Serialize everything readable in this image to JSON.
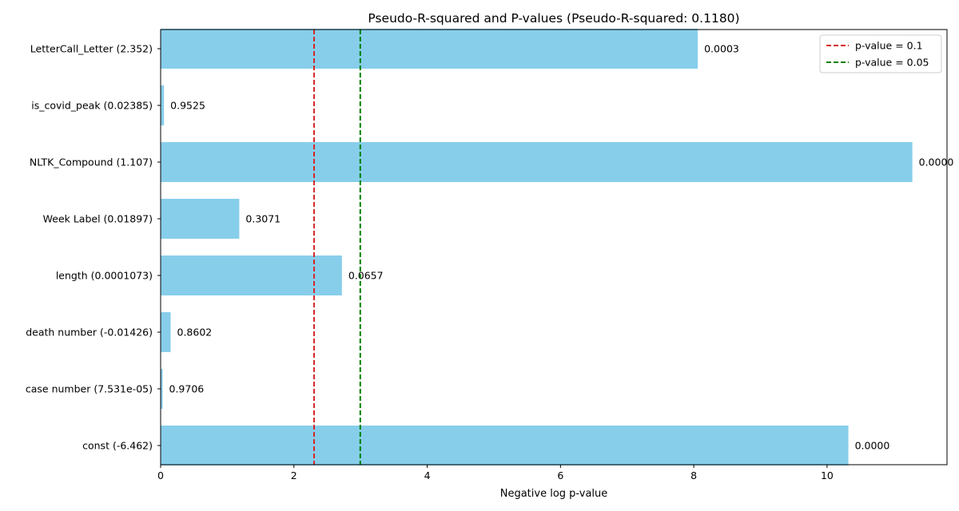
{
  "chart_data": {
    "type": "bar",
    "orientation": "horizontal",
    "title": "Pseudo-R-squared and P-values (Pseudo-R-squared: 0.1180)",
    "xlabel": "Negative log p-value",
    "ylabel": "",
    "xlim": [
      0,
      11.8
    ],
    "xticks": [
      0,
      2,
      4,
      6,
      8,
      10
    ],
    "grid": false,
    "bar_color": "#87CEEB",
    "categories": [
      "LetterCall_Letter (2.352)",
      "is_covid_peak (0.02385)",
      "NLTK_Compound (1.107)",
      "Week Label (0.01897)",
      "length (0.0001073)",
      "death number (-0.01426)",
      "case number (7.531e-05)",
      "const (-6.462)"
    ],
    "values": [
      8.06,
      0.05,
      11.28,
      1.18,
      2.72,
      0.15,
      0.03,
      10.32
    ],
    "data_labels": [
      "0.0003",
      "0.9525",
      "0.0000",
      "0.3071",
      "0.0657",
      "0.8602",
      "0.9706",
      "0.0000"
    ],
    "reference_lines": [
      {
        "name": "p-value = 0.1",
        "x": 2.302585,
        "color": "#d62728",
        "style": "dashed"
      },
      {
        "name": "p-value = 0.05",
        "x": 2.995732,
        "color": "#008000",
        "style": "dashed"
      }
    ],
    "legend": {
      "position": "top-right"
    }
  }
}
